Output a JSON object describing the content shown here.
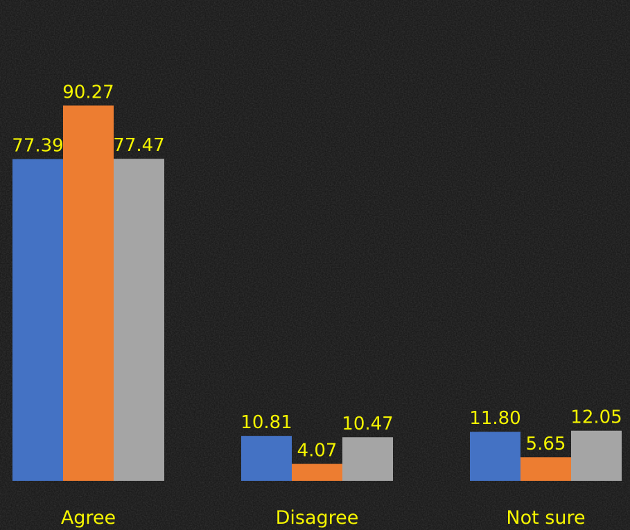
{
  "chart_data": {
    "type": "bar",
    "categories": [
      "Agree",
      "Disagree",
      "Not sure"
    ],
    "series": [
      {
        "values": [
          77.39,
          10.81,
          11.8
        ],
        "color": "#4472c4"
      },
      {
        "values": [
          90.27,
          4.07,
          5.65
        ],
        "color": "#ed7d31"
      },
      {
        "values": [
          77.47,
          10.47,
          12.05
        ],
        "color": "#a5a5a5"
      }
    ],
    "value_labels": [
      [
        "77.39",
        "10.81",
        "11.80"
      ],
      [
        "90.27",
        "4.07",
        "5.65"
      ],
      [
        "77.47",
        "10.47",
        "12.05"
      ]
    ],
    "ylim": [
      0,
      100
    ],
    "grid": false,
    "legend": "none",
    "background_color": "#151515",
    "label_color": "#f5f500"
  }
}
